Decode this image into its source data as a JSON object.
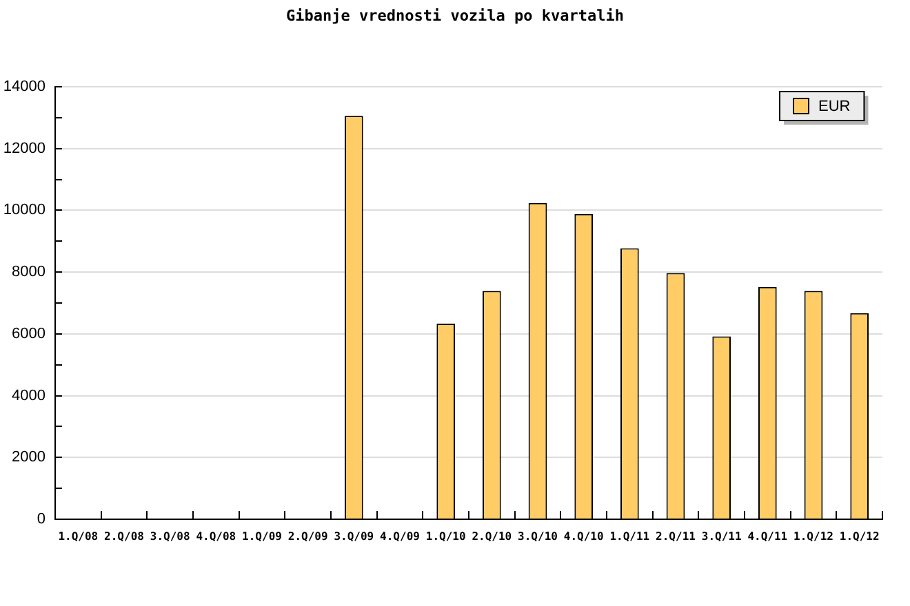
{
  "chart_data": {
    "type": "bar",
    "title": "Gibanje vrednosti vozila po kvartalih",
    "categories": [
      "1.Q/08",
      "2.Q/08",
      "3.Q/08",
      "4.Q/08",
      "1.Q/09",
      "2.Q/09",
      "3.Q/09",
      "4.Q/09",
      "1.Q/10",
      "2.Q/10",
      "3.Q/10",
      "4.Q/10",
      "1.Q/11",
      "2.Q/11",
      "3.Q/11",
      "4.Q/11",
      "1.Q/12",
      "1.Q/12"
    ],
    "series": [
      {
        "name": "EUR",
        "color": "#ffcc66",
        "values": [
          null,
          null,
          null,
          null,
          null,
          null,
          13060,
          null,
          6330,
          7390,
          10240,
          9880,
          8770,
          7970,
          5920,
          7520,
          7390,
          6670
        ]
      }
    ],
    "ylim": [
      0,
      14000
    ],
    "yticks": [
      0,
      {
        "value": 1000,
        "label": null
      },
      2000,
      {
        "value": 3000,
        "label": null
      },
      4000,
      {
        "value": 5000,
        "label": null
      },
      6000,
      {
        "value": 7000,
        "label": null
      },
      8000,
      {
        "value": 9000,
        "label": null
      },
      10000,
      {
        "value": 11000,
        "label": null
      },
      12000,
      {
        "value": 13000,
        "label": null
      },
      14000
    ],
    "grid": "y",
    "legend": "top right"
  }
}
